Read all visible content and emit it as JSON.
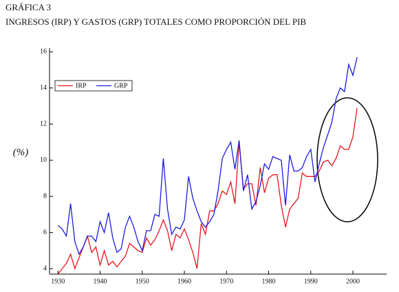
{
  "chart_data": {
    "type": "line",
    "title": "GRÁFICA 3",
    "subtitle": "INGRESOS (IRP) Y GASTOS (GRP) TOTALES COMO PROPORCIÓN DEL PIB",
    "ylabel": "(%)",
    "x": [
      1930,
      1931,
      1932,
      1933,
      1934,
      1935,
      1936,
      1937,
      1938,
      1939,
      1940,
      1941,
      1942,
      1943,
      1944,
      1945,
      1946,
      1947,
      1948,
      1949,
      1950,
      1951,
      1952,
      1953,
      1954,
      1955,
      1956,
      1957,
      1958,
      1959,
      1960,
      1961,
      1962,
      1963,
      1964,
      1965,
      1966,
      1967,
      1968,
      1969,
      1970,
      1971,
      1972,
      1973,
      1974,
      1975,
      1976,
      1977,
      1978,
      1979,
      1980,
      1981,
      1982,
      1983,
      1984,
      1985,
      1986,
      1987,
      1988,
      1989,
      1990,
      1991,
      1992,
      1993,
      1994,
      1995,
      1996,
      1997,
      1998,
      1999,
      2000,
      2001
    ],
    "series": [
      {
        "name": "IRP",
        "color": "#e8141c",
        "values": [
          3.7,
          4.0,
          4.3,
          4.8,
          4.0,
          4.6,
          5.2,
          5.8,
          4.9,
          5.2,
          4.2,
          5.0,
          4.2,
          4.4,
          4.1,
          4.4,
          4.7,
          5.4,
          5.2,
          5.0,
          4.9,
          5.7,
          5.3,
          5.6,
          6.1,
          6.7,
          6.1,
          5.0,
          5.9,
          5.7,
          6.2,
          5.6,
          4.9,
          4.0,
          6.5,
          5.9,
          7.2,
          7.2,
          7.6,
          8.3,
          8.1,
          8.8,
          7.6,
          11.0,
          8.4,
          8.7,
          8.7,
          7.5,
          9.6,
          8.2,
          9.0,
          9.2,
          9.2,
          7.5,
          6.3,
          7.3,
          7.6,
          7.9,
          9.3,
          9.1,
          9.1,
          9.1,
          9.4,
          9.9,
          10.0,
          9.7,
          10.1,
          10.8,
          10.6,
          10.6,
          11.3,
          12.9
        ]
      },
      {
        "name": "GRP",
        "color": "#1a1ae0",
        "values": [
          6.4,
          6.2,
          5.8,
          7.6,
          5.5,
          4.8,
          5.2,
          5.8,
          5.8,
          5.5,
          6.6,
          6.0,
          7.1,
          5.7,
          4.9,
          5.1,
          6.3,
          6.9,
          6.3,
          5.5,
          5.0,
          6.1,
          6.1,
          7.0,
          6.9,
          10.1,
          7.3,
          5.9,
          6.3,
          6.2,
          6.7,
          9.1,
          7.9,
          7.2,
          6.6,
          6.3,
          6.6,
          7.0,
          8.3,
          10.1,
          10.6,
          11.0,
          9.5,
          11.1,
          8.3,
          9.2,
          7.3,
          7.7,
          8.6,
          9.8,
          9.5,
          10.2,
          10.1,
          10.0,
          7.5,
          10.3,
          9.4,
          9.4,
          9.6,
          10.2,
          10.6,
          8.8,
          9.8,
          10.7,
          11.4,
          12.1,
          13.4,
          14.0,
          13.8,
          15.3,
          14.7,
          15.7
        ]
      }
    ],
    "xlim": [
      1928,
      2008
    ],
    "ylim": [
      3.7,
      16.2
    ],
    "xticks": [
      1930,
      1940,
      1950,
      1960,
      1970,
      1980,
      1990,
      2000
    ],
    "yticks": [
      4,
      6,
      8,
      10,
      12,
      14,
      16
    ],
    "legend": "upper left"
  }
}
